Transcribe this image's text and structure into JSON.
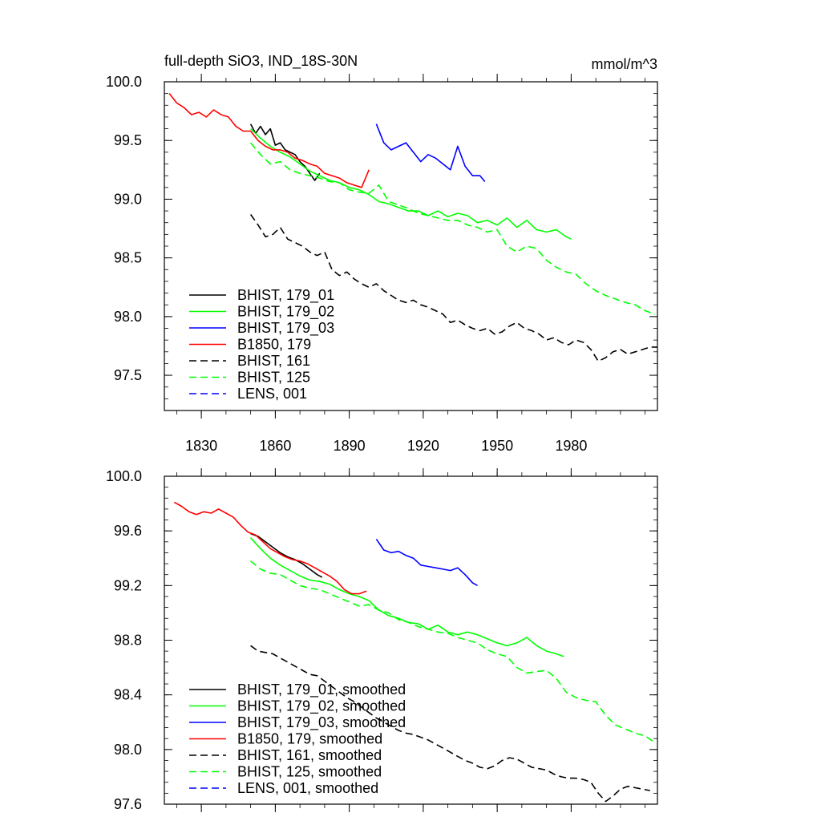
{
  "figure": {
    "title_left": "full-depth SiO3, IND_18S-30N",
    "title_right": "mmol/m^3"
  },
  "chart_data": [
    {
      "type": "line",
      "xlim": [
        1815,
        2015
      ],
      "ylim": [
        97.2,
        100.0
      ],
      "x_ticks": [
        1830,
        1860,
        1890,
        1920,
        1950,
        1980
      ],
      "y_ticks": [
        97.5,
        98.0,
        98.5,
        99.0,
        99.5,
        100.0
      ],
      "x_tick_labels": [
        "1830",
        "1860",
        "1890",
        "1920",
        "1950",
        "1980"
      ],
      "y_tick_labels": [
        "97.5",
        "98.0",
        "98.5",
        "99.0",
        "99.5",
        "100.0"
      ],
      "legend": {
        "position": "bottom-left"
      },
      "series": [
        {
          "name": "BHIST, 179_01",
          "color": "#000000",
          "dash": "solid",
          "x": [
            1850,
            1852,
            1854,
            1856,
            1858,
            1860,
            1862,
            1864,
            1866,
            1868,
            1870,
            1872,
            1874,
            1876,
            1878
          ],
          "y": [
            99.64,
            99.56,
            99.62,
            99.55,
            99.6,
            99.46,
            99.48,
            99.42,
            99.4,
            99.38,
            99.32,
            99.28,
            99.22,
            99.16,
            99.22
          ]
        },
        {
          "name": "BHIST, 179_02",
          "color": "#00ff00",
          "dash": "solid",
          "x": [
            1850,
            1854,
            1858,
            1862,
            1866,
            1870,
            1874,
            1878,
            1882,
            1886,
            1890,
            1894,
            1898,
            1902,
            1906,
            1910,
            1914,
            1918,
            1922,
            1926,
            1930,
            1934,
            1938,
            1942,
            1946,
            1950,
            1954,
            1958,
            1962,
            1966,
            1970,
            1974,
            1978,
            1980
          ],
          "y": [
            99.6,
            99.52,
            99.45,
            99.4,
            99.36,
            99.3,
            99.24,
            99.2,
            99.16,
            99.14,
            99.1,
            99.08,
            99.04,
            98.98,
            98.96,
            98.93,
            98.9,
            98.9,
            98.86,
            98.9,
            98.85,
            98.88,
            98.86,
            98.8,
            98.82,
            98.78,
            98.84,
            98.76,
            98.82,
            98.74,
            98.72,
            98.74,
            98.68,
            98.66
          ]
        },
        {
          "name": "BHIST, 179_03",
          "color": "#0000ff",
          "dash": "solid",
          "x": [
            1901,
            1904,
            1907,
            1910,
            1913,
            1916,
            1919,
            1922,
            1925,
            1928,
            1931,
            1934,
            1937,
            1940,
            1943,
            1945
          ],
          "y": [
            99.64,
            99.48,
            99.42,
            99.45,
            99.48,
            99.4,
            99.32,
            99.38,
            99.35,
            99.3,
            99.25,
            99.45,
            99.28,
            99.2,
            99.2,
            99.15
          ]
        },
        {
          "name": "B1850, 179",
          "color": "#ff0000",
          "dash": "solid",
          "x": [
            1817,
            1820,
            1823,
            1826,
            1829,
            1832,
            1835,
            1838,
            1841,
            1844,
            1847,
            1850,
            1853,
            1856,
            1859,
            1862,
            1865,
            1868,
            1871,
            1874,
            1877,
            1880,
            1883,
            1886,
            1889,
            1892,
            1895,
            1898
          ],
          "y": [
            99.9,
            99.82,
            99.78,
            99.72,
            99.74,
            99.7,
            99.76,
            99.72,
            99.7,
            99.62,
            99.58,
            99.58,
            99.5,
            99.45,
            99.42,
            99.42,
            99.4,
            99.35,
            99.33,
            99.3,
            99.28,
            99.22,
            99.2,
            99.18,
            99.14,
            99.12,
            99.1,
            99.25
          ]
        },
        {
          "name": "BHIST, 161",
          "color": "#000000",
          "dash": "dashed",
          "x": [
            1850,
            1853,
            1856,
            1859,
            1862,
            1865,
            1868,
            1871,
            1874,
            1877,
            1880,
            1883,
            1886,
            1889,
            1892,
            1895,
            1898,
            1901,
            1904,
            1907,
            1910,
            1913,
            1916,
            1919,
            1922,
            1925,
            1928,
            1931,
            1934,
            1937,
            1940,
            1943,
            1946,
            1949,
            1952,
            1955,
            1958,
            1961,
            1964,
            1967,
            1970,
            1973,
            1976,
            1979,
            1982,
            1985,
            1988,
            1991,
            1994,
            1997,
            2000,
            2003,
            2006,
            2009,
            2012,
            2015
          ],
          "y": [
            98.87,
            98.78,
            98.68,
            98.7,
            98.76,
            98.66,
            98.63,
            98.6,
            98.55,
            98.52,
            98.55,
            98.4,
            98.35,
            98.38,
            98.32,
            98.28,
            98.25,
            98.28,
            98.22,
            98.18,
            98.14,
            98.12,
            98.14,
            98.1,
            98.08,
            98.05,
            98.02,
            97.95,
            97.97,
            97.93,
            97.9,
            97.88,
            97.9,
            97.85,
            97.87,
            97.92,
            97.95,
            97.9,
            97.88,
            97.85,
            97.8,
            97.82,
            97.78,
            97.76,
            97.8,
            97.78,
            97.72,
            97.62,
            97.65,
            97.7,
            97.72,
            97.68,
            97.7,
            97.72,
            97.74,
            97.74
          ]
        },
        {
          "name": "BHIST, 125",
          "color": "#00ff00",
          "dash": "dashed",
          "x": [
            1850,
            1854,
            1858,
            1862,
            1866,
            1870,
            1874,
            1878,
            1882,
            1886,
            1890,
            1894,
            1898,
            1902,
            1906,
            1910,
            1914,
            1918,
            1922,
            1926,
            1930,
            1934,
            1938,
            1942,
            1946,
            1950,
            1954,
            1958,
            1962,
            1966,
            1970,
            1974,
            1978,
            1982,
            1986,
            1990,
            1994,
            1998,
            2002,
            2006,
            2010,
            2014
          ],
          "y": [
            99.48,
            99.38,
            99.3,
            99.32,
            99.25,
            99.22,
            99.2,
            99.18,
            99.15,
            99.14,
            99.08,
            99.06,
            99.05,
            99.12,
            98.98,
            98.95,
            98.92,
            98.88,
            98.86,
            98.84,
            98.82,
            98.82,
            98.78,
            98.76,
            98.72,
            98.74,
            98.6,
            98.55,
            98.6,
            98.58,
            98.48,
            98.42,
            98.38,
            98.36,
            98.28,
            98.22,
            98.18,
            98.15,
            98.12,
            98.1,
            98.05,
            98.02
          ]
        },
        {
          "name": "LENS, 001",
          "color": "#0000ff",
          "dash": "dashed",
          "x": [],
          "y": []
        }
      ]
    },
    {
      "type": "line",
      "xlim": [
        1815,
        2015
      ],
      "ylim": [
        97.6,
        100.0
      ],
      "x_ticks": [
        1830,
        1860,
        1890,
        1920,
        1950,
        1980
      ],
      "y_ticks": [
        97.6,
        98.0,
        98.4,
        98.8,
        99.2,
        99.6,
        100.0
      ],
      "y_tick_labels": [
        "97.6",
        "98.0",
        "98.4",
        "98.8",
        "99.2",
        "99.6",
        "100.0"
      ],
      "legend": {
        "position": "bottom-left"
      },
      "series": [
        {
          "name": "BHIST, 179_01, smoothed",
          "color": "#000000",
          "dash": "solid",
          "x": [
            1850,
            1853,
            1856,
            1859,
            1862,
            1865,
            1868,
            1871,
            1874,
            1877,
            1879
          ],
          "y": [
            99.58,
            99.56,
            99.52,
            99.48,
            99.44,
            99.41,
            99.39,
            99.36,
            99.32,
            99.28,
            99.26
          ]
        },
        {
          "name": "BHIST, 179_02, smoothed",
          "color": "#00ff00",
          "dash": "solid",
          "x": [
            1850,
            1854,
            1858,
            1862,
            1866,
            1870,
            1874,
            1878,
            1882,
            1886,
            1890,
            1894,
            1898,
            1902,
            1906,
            1910,
            1914,
            1918,
            1922,
            1926,
            1930,
            1934,
            1938,
            1942,
            1946,
            1950,
            1954,
            1958,
            1962,
            1966,
            1970,
            1974,
            1977
          ],
          "y": [
            99.55,
            99.47,
            99.4,
            99.35,
            99.31,
            99.27,
            99.24,
            99.23,
            99.21,
            99.17,
            99.14,
            99.12,
            99.09,
            99.02,
            98.98,
            98.96,
            98.93,
            98.92,
            98.88,
            98.91,
            98.86,
            98.84,
            98.86,
            98.84,
            98.81,
            98.78,
            98.76,
            98.78,
            98.82,
            98.76,
            98.72,
            98.7,
            98.68
          ]
        },
        {
          "name": "BHIST, 179_03, smoothed",
          "color": "#0000ff",
          "dash": "solid",
          "x": [
            1901,
            1904,
            1907,
            1910,
            1913,
            1916,
            1919,
            1922,
            1925,
            1928,
            1931,
            1934,
            1937,
            1940,
            1942
          ],
          "y": [
            99.54,
            99.46,
            99.44,
            99.45,
            99.42,
            99.4,
            99.35,
            99.34,
            99.33,
            99.32,
            99.31,
            99.33,
            99.28,
            99.22,
            99.2
          ]
        },
        {
          "name": "B1850, 179, smoothed",
          "color": "#ff0000",
          "dash": "solid",
          "x": [
            1819,
            1822,
            1825,
            1828,
            1831,
            1834,
            1837,
            1840,
            1843,
            1846,
            1849,
            1852,
            1855,
            1858,
            1861,
            1864,
            1867,
            1870,
            1873,
            1876,
            1879,
            1882,
            1885,
            1888,
            1891,
            1894,
            1897
          ],
          "y": [
            99.81,
            99.78,
            99.74,
            99.72,
            99.74,
            99.73,
            99.76,
            99.73,
            99.7,
            99.64,
            99.59,
            99.57,
            99.52,
            99.47,
            99.44,
            99.41,
            99.39,
            99.38,
            99.36,
            99.33,
            99.3,
            99.27,
            99.23,
            99.17,
            99.14,
            99.14,
            99.16
          ]
        },
        {
          "name": "BHIST, 161, smoothed",
          "color": "#000000",
          "dash": "dashed",
          "x": [
            1850,
            1853,
            1856,
            1859,
            1862,
            1865,
            1868,
            1871,
            1874,
            1877,
            1880,
            1883,
            1886,
            1889,
            1892,
            1895,
            1898,
            1901,
            1904,
            1907,
            1910,
            1913,
            1916,
            1919,
            1922,
            1925,
            1928,
            1931,
            1934,
            1937,
            1940,
            1943,
            1946,
            1949,
            1952,
            1955,
            1958,
            1961,
            1964,
            1967,
            1970,
            1973,
            1976,
            1979,
            1982,
            1985,
            1988,
            1991,
            1994,
            1997,
            2000,
            2003,
            2006,
            2009,
            2012
          ],
          "y": [
            98.76,
            98.72,
            98.71,
            98.7,
            98.67,
            98.64,
            98.61,
            98.58,
            98.55,
            98.54,
            98.5,
            98.46,
            98.42,
            98.38,
            98.35,
            98.31,
            98.27,
            98.23,
            98.2,
            98.17,
            98.14,
            98.12,
            98.11,
            98.09,
            98.07,
            98.04,
            98.01,
            97.98,
            97.95,
            97.92,
            97.9,
            97.87,
            97.86,
            97.88,
            97.92,
            97.94,
            97.93,
            97.9,
            97.87,
            97.86,
            97.85,
            97.82,
            97.8,
            97.79,
            97.79,
            97.78,
            97.76,
            97.68,
            97.62,
            97.66,
            97.71,
            97.73,
            97.72,
            97.71,
            97.7
          ]
        },
        {
          "name": "BHIST, 125, smoothed",
          "color": "#00ff00",
          "dash": "dashed",
          "x": [
            1850,
            1854,
            1858,
            1862,
            1866,
            1870,
            1874,
            1878,
            1882,
            1886,
            1890,
            1894,
            1898,
            1902,
            1906,
            1910,
            1914,
            1918,
            1922,
            1926,
            1930,
            1934,
            1938,
            1942,
            1946,
            1950,
            1954,
            1958,
            1962,
            1966,
            1970,
            1974,
            1978,
            1982,
            1986,
            1990,
            1994,
            1998,
            2002,
            2006,
            2010,
            2014
          ],
          "y": [
            99.38,
            99.32,
            99.29,
            99.28,
            99.24,
            99.2,
            99.18,
            99.17,
            99.14,
            99.11,
            99.08,
            99.05,
            99.06,
            99.02,
            99.0,
            98.95,
            98.93,
            98.9,
            98.88,
            98.86,
            98.85,
            98.82,
            98.8,
            98.78,
            98.73,
            98.7,
            98.68,
            98.6,
            98.56,
            98.57,
            98.58,
            98.52,
            98.42,
            98.38,
            98.36,
            98.35,
            98.25,
            98.18,
            98.15,
            98.12,
            98.1,
            98.05
          ]
        },
        {
          "name": "LENS, 001, smoothed",
          "color": "#0000ff",
          "dash": "dashed",
          "x": [],
          "y": []
        }
      ]
    }
  ]
}
